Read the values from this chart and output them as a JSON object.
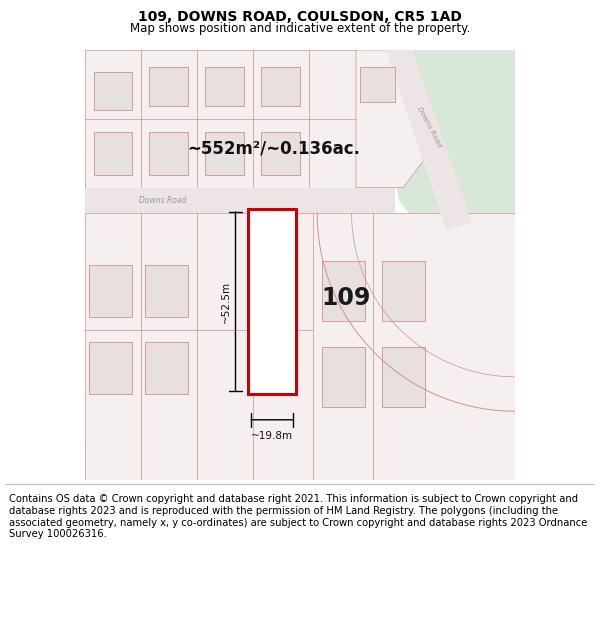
{
  "title": "109, DOWNS ROAD, COULSDON, CR5 1AD",
  "subtitle": "Map shows position and indicative extent of the property.",
  "footer": "Contains OS data © Crown copyright and database right 2021. This information is subject to Crown copyright and database rights 2023 and is reproduced with the permission of HM Land Registry. The polygons (including the associated geometry, namely x, y co-ordinates) are subject to Crown copyright and database rights 2023 Ordnance Survey 100026316.",
  "area_label": "~552m²/~0.136ac.",
  "label_109": "109",
  "dim_width": "~19.8m",
  "dim_height": "~52.5m",
  "road_label_h": "Downs Road",
  "road_label_diag": "Downs Road",
  "bg_color": "#ffffff",
  "map_bg": "#f7f0f0",
  "green_color": "#d8e8d8",
  "road_fill": "#ede5e5",
  "plot_fill": "#f5efef",
  "building_fill": "#e8dfdf",
  "building_stroke": "#d09090",
  "highlight_color": "#cc0000",
  "highlight_fill": "#ffffff",
  "title_fontsize": 10,
  "subtitle_fontsize": 8.5,
  "footer_fontsize": 7.2
}
